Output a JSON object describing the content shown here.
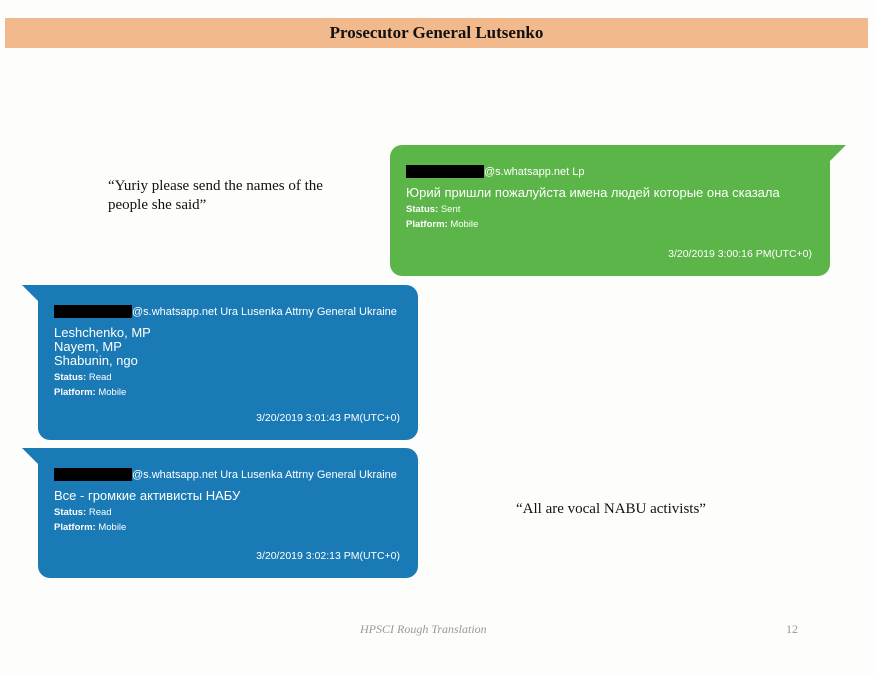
{
  "header": {
    "title": "Prosecutor General Lutsenko"
  },
  "translations": [
    "“Yuriy please send the names of the people she said”",
    "“All are vocal NABU activists”"
  ],
  "messages": [
    {
      "from": "@s.whatsapp.net Lp",
      "text": [
        "Юрий пришли пожалуйста имена людей которые она сказала"
      ],
      "status_label": "Status:",
      "status": "Sent",
      "platform_label": "Platform:",
      "platform": "Mobile",
      "timestamp": "3/20/2019 3:00:16 PM(UTC+0)",
      "color": "#5cb548"
    },
    {
      "from": "@s.whatsapp.net Ura Lusenka  Attrny General Ukraine",
      "text": [
        "Leshchenko, MP",
        "Nayem, MP",
        "Shabunin, ngo"
      ],
      "status_label": "Status:",
      "status": "Read",
      "platform_label": "Platform:",
      "platform": "Mobile",
      "timestamp": "3/20/2019 3:01:43 PM(UTC+0)",
      "color": "#1a7ab5"
    },
    {
      "from": "@s.whatsapp.net Ura Lusenka  Attrny General Ukraine",
      "text": [
        "Все - громкие активисты НАБУ"
      ],
      "status_label": "Status:",
      "status": "Read",
      "platform_label": "Platform:",
      "platform": "Mobile",
      "timestamp": "3/20/2019 3:02:13 PM(UTC+0)",
      "color": "#1a7ab5"
    }
  ],
  "footer": {
    "label": "HPSCI Rough Translation",
    "page": "12"
  }
}
